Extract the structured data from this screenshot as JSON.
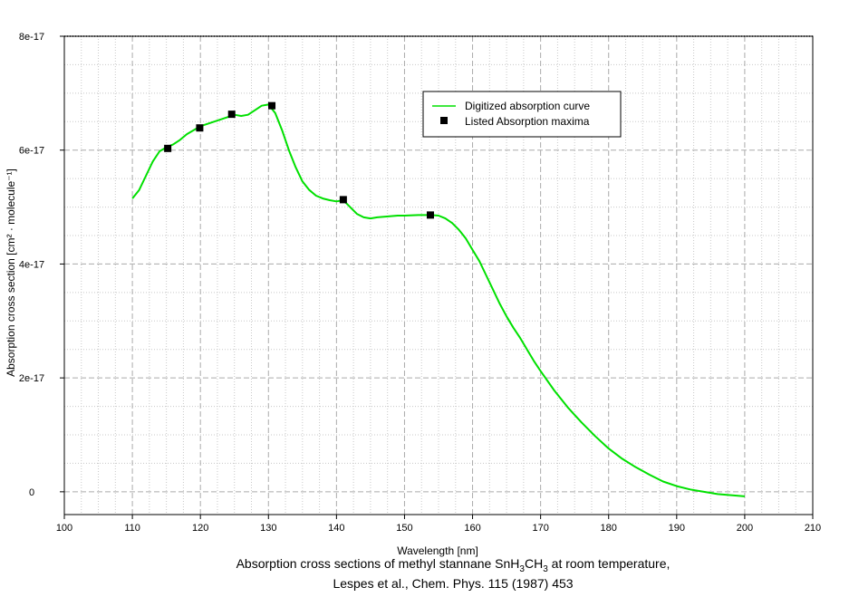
{
  "chart_data": {
    "type": "line",
    "xlabel": "Wavelength [nm]",
    "ylabel": "Absorption cross section [cm² · molecule⁻¹]",
    "xlim": [
      100,
      210
    ],
    "ylim": [
      -4e-18,
      8e-17
    ],
    "x_ticks": [
      100,
      110,
      120,
      130,
      140,
      150,
      160,
      170,
      180,
      190,
      200,
      210
    ],
    "x_tick_labels": [
      "100",
      "110",
      "120",
      "130",
      "140",
      "150",
      "160",
      "170",
      "180",
      "190",
      "200",
      "210"
    ],
    "y_ticks": [
      0,
      2e-17,
      4e-17,
      6e-17,
      8e-17
    ],
    "y_tick_labels": [
      "0",
      "2e-17",
      "4e-17",
      "6e-17",
      "8e-17"
    ],
    "grid": true,
    "legend_position": "top-right",
    "series": [
      {
        "name": "Digitized absorption curve",
        "color": "#00e000",
        "marker": "line",
        "x": [
          110,
          111,
          112,
          113,
          114,
          115,
          116,
          117,
          118,
          119,
          120,
          121,
          122,
          123,
          124,
          125,
          126,
          127,
          128,
          129,
          130,
          131,
          132,
          133,
          134,
          135,
          136,
          137,
          138,
          139,
          140,
          141,
          142,
          143,
          144,
          145,
          146,
          147,
          148,
          149,
          150,
          152,
          154,
          155,
          156,
          157,
          158,
          159,
          160,
          161,
          162,
          163,
          164,
          165,
          166,
          167,
          168,
          169,
          170,
          172,
          174,
          176,
          178,
          180,
          182,
          184,
          186,
          188,
          190,
          192,
          194,
          196,
          198,
          200
        ],
        "y": [
          5.15e-17,
          5.3e-17,
          5.55e-17,
          5.8e-17,
          5.98e-17,
          6.05e-17,
          6.1e-17,
          6.18e-17,
          6.28e-17,
          6.35e-17,
          6.42e-17,
          6.46e-17,
          6.5e-17,
          6.54e-17,
          6.58e-17,
          6.62e-17,
          6.6e-17,
          6.62e-17,
          6.7e-17,
          6.78e-17,
          6.8e-17,
          6.65e-17,
          6.35e-17,
          6e-17,
          5.7e-17,
          5.45e-17,
          5.3e-17,
          5.2e-17,
          5.15e-17,
          5.12e-17,
          5.1e-17,
          5.12e-17,
          5e-17,
          4.88e-17,
          4.82e-17,
          4.8e-17,
          4.82e-17,
          4.83e-17,
          4.84e-17,
          4.85e-17,
          4.85e-17,
          4.86e-17,
          4.86e-17,
          4.85e-17,
          4.8e-17,
          4.72e-17,
          4.6e-17,
          4.45e-17,
          4.25e-17,
          4.05e-17,
          3.8e-17,
          3.55e-17,
          3.3e-17,
          3.08e-17,
          2.88e-17,
          2.7e-17,
          2.5e-17,
          2.3e-17,
          2.12e-17,
          1.78e-17,
          1.48e-17,
          1.22e-17,
          9.8e-18,
          7.6e-18,
          5.8e-18,
          4.3e-18,
          3e-18,
          1.8e-18,
          1e-18,
          4e-19,
          0.0,
          -4e-19,
          -6e-19,
          -8e-19
        ]
      },
      {
        "name": "Listed Absorption maxima",
        "color": "#000000",
        "marker": "square",
        "x": [
          115.2,
          119.9,
          124.6,
          130.5,
          141.0,
          153.8
        ],
        "y": [
          6.03e-17,
          6.39e-17,
          6.63e-17,
          6.78e-17,
          5.13e-17,
          4.86e-17
        ]
      }
    ]
  },
  "caption": {
    "line1_pre": "Absorption cross sections of methyl stannane SnH",
    "line1_sub1": "3",
    "line1_mid": "CH",
    "line1_sub2": "3",
    "line1_post": " at room temperature,",
    "line2": "Lespes et al., Chem. Phys. 115 (1987) 453"
  }
}
